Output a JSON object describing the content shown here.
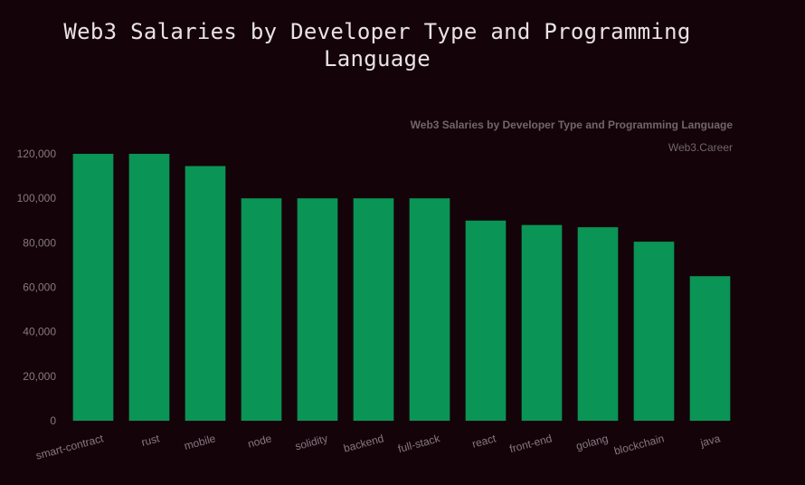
{
  "page": {
    "title_line1": "Web3 Salaries by Developer Type and Programming",
    "title_line2": "Language"
  },
  "colors": {
    "background": "#15030a",
    "bar": "#0a9455",
    "text": "#847a80"
  },
  "chart_data": {
    "type": "bar",
    "title": "Web3 Salaries by Developer Type and Programming Language",
    "subtitle": "Web3.Career",
    "categories": [
      "smart-contract",
      "rust",
      "mobile",
      "node",
      "solidity",
      "backend",
      "full-stack",
      "react",
      "front-end",
      "golang",
      "blockchain",
      "java"
    ],
    "values": [
      120000,
      120000,
      114500,
      100000,
      100000,
      100000,
      100000,
      90000,
      88000,
      87000,
      80500,
      65000
    ],
    "yticks": [
      "0",
      "20,000",
      "40,000",
      "60,000",
      "80,000",
      "100,000",
      "120,000"
    ],
    "ylim": [
      0,
      120000
    ],
    "grid": false,
    "legend": "none"
  }
}
